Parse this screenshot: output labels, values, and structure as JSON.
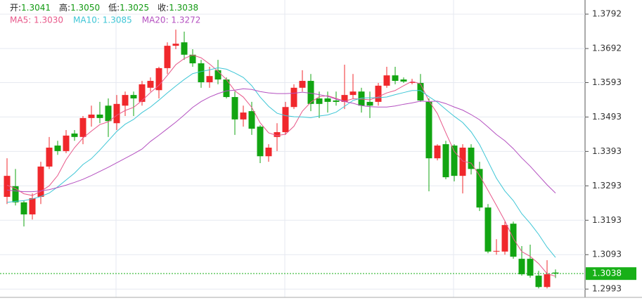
{
  "chart_data": {
    "type": "candlestick",
    "header": [
      {
        "label": "开:",
        "value": "1.3041"
      },
      {
        "label": "高:",
        "value": "1.3050"
      },
      {
        "label": "低:",
        "value": "1.3025"
      },
      {
        "label": "收:",
        "value": "1.3038"
      }
    ],
    "up_color": "#f0282c",
    "down_color": "#12a512",
    "open": [
      1.3261,
      1.3292,
      1.3245,
      1.321,
      1.3261,
      1.3349,
      1.341,
      1.3394,
      1.3445,
      1.3435,
      1.349,
      1.35,
      1.3526,
      1.3475,
      1.3526,
      1.3557,
      1.3537,
      1.3578,
      1.3571,
      1.3635,
      1.37,
      1.371,
      1.3674,
      1.3649,
      1.3594,
      1.3629,
      1.3602,
      1.3551,
      1.3486,
      1.351,
      1.3465,
      1.3379,
      1.3435,
      1.3449,
      1.3522,
      1.3578,
      1.3598,
      1.3547,
      1.3547,
      1.3541,
      1.3537,
      1.3557,
      1.3567,
      1.3537,
      1.3537,
      1.3584,
      1.3614,
      1.3602,
      1.3592,
      1.3592,
      1.3537,
      1.3373,
      1.3414,
      1.341,
      1.3322,
      1.3404,
      1.3342,
      1.323,
      1.3102,
      1.3102,
      1.3183,
      1.3081,
      1.3081,
      1.3032,
      1.2999,
      1.3041
    ],
    "high": [
      1.3373,
      1.3342,
      1.3251,
      1.3271,
      1.3363,
      1.3435,
      1.3424,
      1.3455,
      1.3455,
      1.3496,
      1.3526,
      1.3537,
      1.3547,
      1.3557,
      1.3567,
      1.3567,
      1.3598,
      1.3608,
      1.3639,
      1.371,
      1.3747,
      1.3741,
      1.369,
      1.3659,
      1.3639,
      1.3659,
      1.3608,
      1.3567,
      1.3526,
      1.3537,
      1.3469,
      1.3414,
      1.3475,
      1.3537,
      1.3588,
      1.3629,
      1.3618,
      1.3567,
      1.3567,
      1.3567,
      1.3645,
      1.3618,
      1.3578,
      1.3567,
      1.3592,
      1.3639,
      1.3639,
      1.3608,
      1.3604,
      1.3618,
      1.3547,
      1.3414,
      1.3424,
      1.3414,
      1.3414,
      1.3414,
      1.3363,
      1.324,
      1.3138,
      1.3189,
      1.3189,
      1.3118,
      1.3122,
      1.3046,
      1.3077,
      1.305
    ],
    "low": [
      1.324,
      1.3236,
      1.3175,
      1.3195,
      1.324,
      1.3342,
      1.3383,
      1.3388,
      1.3424,
      1.3414,
      1.3465,
      1.3475,
      1.3435,
      1.3455,
      1.3496,
      1.3496,
      1.3526,
      1.3567,
      1.3547,
      1.3618,
      1.369,
      1.3659,
      1.3639,
      1.3578,
      1.3578,
      1.3588,
      1.3547,
      1.3441,
      1.3465,
      1.3441,
      1.3359,
      1.3363,
      1.3394,
      1.3441,
      1.3516,
      1.3567,
      1.351,
      1.349,
      1.3506,
      1.3526,
      1.3516,
      1.3547,
      1.3506,
      1.349,
      1.3526,
      1.3578,
      1.3588,
      1.3592,
      1.3588,
      1.3537,
      1.3277,
      1.3367,
      1.3312,
      1.3306,
      1.3271,
      1.3326,
      1.322,
      1.3097,
      1.3093,
      1.3093,
      1.3081,
      1.3032,
      1.3026,
      1.2995,
      1.2995,
      1.3025
    ],
    "close": [
      1.3322,
      1.3245,
      1.321,
      1.3257,
      1.3349,
      1.3404,
      1.3394,
      1.3439,
      1.3435,
      1.349,
      1.35,
      1.349,
      1.3481,
      1.3531,
      1.3557,
      1.3547,
      1.3588,
      1.3598,
      1.3635,
      1.37,
      1.3706,
      1.3674,
      1.3649,
      1.3594,
      1.3612,
      1.3602,
      1.3551,
      1.3486,
      1.3506,
      1.3459,
      1.3379,
      1.3404,
      1.3449,
      1.3522,
      1.3578,
      1.3598,
      1.3531,
      1.3531,
      1.3537,
      1.3537,
      1.3557,
      1.3567,
      1.3526,
      1.3526,
      1.3584,
      1.3614,
      1.3598,
      1.3596,
      1.3594,
      1.3541,
      1.3373,
      1.341,
      1.3318,
      1.3322,
      1.3404,
      1.3342,
      1.323,
      1.3102,
      1.3104,
      1.3179,
      1.3087,
      1.3036,
      1.3032,
      1.2999,
      1.3036,
      1.3038
    ],
    "series": [
      {
        "name": "MA5: 1.3030",
        "color": "#e8588a",
        "values": [
          1.3295,
          1.3285,
          1.327,
          1.3265,
          1.3277,
          1.3293,
          1.3323,
          1.3369,
          1.3404,
          1.3432,
          1.3452,
          1.3471,
          1.3479,
          1.3498,
          1.3512,
          1.3521,
          1.3541,
          1.3564,
          1.3585,
          1.3614,
          1.3645,
          1.3663,
          1.3673,
          1.3665,
          1.3647,
          1.3626,
          1.3602,
          1.3569,
          1.3551,
          1.3521,
          1.3476,
          1.3447,
          1.3439,
          1.3443,
          1.3466,
          1.351,
          1.3536,
          1.3552,
          1.3555,
          1.3547,
          1.3539,
          1.3546,
          1.3545,
          1.3543,
          1.3552,
          1.3563,
          1.357,
          1.3584,
          1.3597,
          1.3589,
          1.354,
          1.3503,
          1.3447,
          1.3393,
          1.3365,
          1.3359,
          1.3323,
          1.328,
          1.3236,
          1.3191,
          1.314,
          1.3102,
          1.3088,
          1.3067,
          1.3038,
          1.303
        ]
      },
      {
        "name": "MA10: 1.3085",
        "color": "#3ec6d6",
        "values": [
          1.3245,
          1.3248,
          1.325,
          1.3255,
          1.3262,
          1.3272,
          1.329,
          1.331,
          1.333,
          1.3355,
          1.3372,
          1.3397,
          1.3424,
          1.3451,
          1.3472,
          1.3486,
          1.3506,
          1.3522,
          1.3542,
          1.3563,
          1.3583,
          1.3602,
          1.3619,
          1.3625,
          1.363,
          1.3636,
          1.3632,
          1.3621,
          1.3608,
          1.3584,
          1.3551,
          1.3524,
          1.3504,
          1.3497,
          1.3494,
          1.3493,
          1.3491,
          1.3496,
          1.3499,
          1.3507,
          1.3524,
          1.3541,
          1.3548,
          1.3549,
          1.3549,
          1.3551,
          1.3558,
          1.3564,
          1.357,
          1.357,
          1.3552,
          1.3536,
          1.3515,
          1.3495,
          1.3477,
          1.345,
          1.3413,
          1.3364,
          1.3315,
          1.3278,
          1.325,
          1.3212,
          1.3184,
          1.3152,
          1.3115,
          1.3085
        ]
      },
      {
        "name": "MA20: 1.3272",
        "color": "#b450c0",
        "values": [
          1.3281,
          1.3278,
          1.3276,
          1.3276,
          1.3278,
          1.3282,
          1.3288,
          1.3295,
          1.3303,
          1.3312,
          1.3323,
          1.3335,
          1.3347,
          1.336,
          1.3373,
          1.3386,
          1.34,
          1.3422,
          1.344,
          1.3459,
          1.3478,
          1.3499,
          1.3521,
          1.3538,
          1.3551,
          1.3561,
          1.3569,
          1.3571,
          1.3575,
          1.3573,
          1.3567,
          1.3563,
          1.3561,
          1.3561,
          1.3562,
          1.3565,
          1.3562,
          1.3558,
          1.3553,
          1.3545,
          1.3538,
          1.3533,
          1.3526,
          1.3523,
          1.3522,
          1.3522,
          1.3525,
          1.353,
          1.3534,
          1.3539,
          1.3538,
          1.3539,
          1.3532,
          1.3522,
          1.3513,
          1.35,
          1.3485,
          1.3464,
          1.3442,
          1.3424,
          1.3401,
          1.3374,
          1.335,
          1.3323,
          1.3296,
          1.3272
        ]
      }
    ],
    "last_price": 1.3038,
    "last_price_color": "#18b018",
    "ylim": [
      1.2975,
      1.3833
    ],
    "yticks": [
      1.2993,
      1.3093,
      1.3193,
      1.3293,
      1.3393,
      1.3493,
      1.3593,
      1.3692,
      1.3792
    ],
    "grid": true
  }
}
